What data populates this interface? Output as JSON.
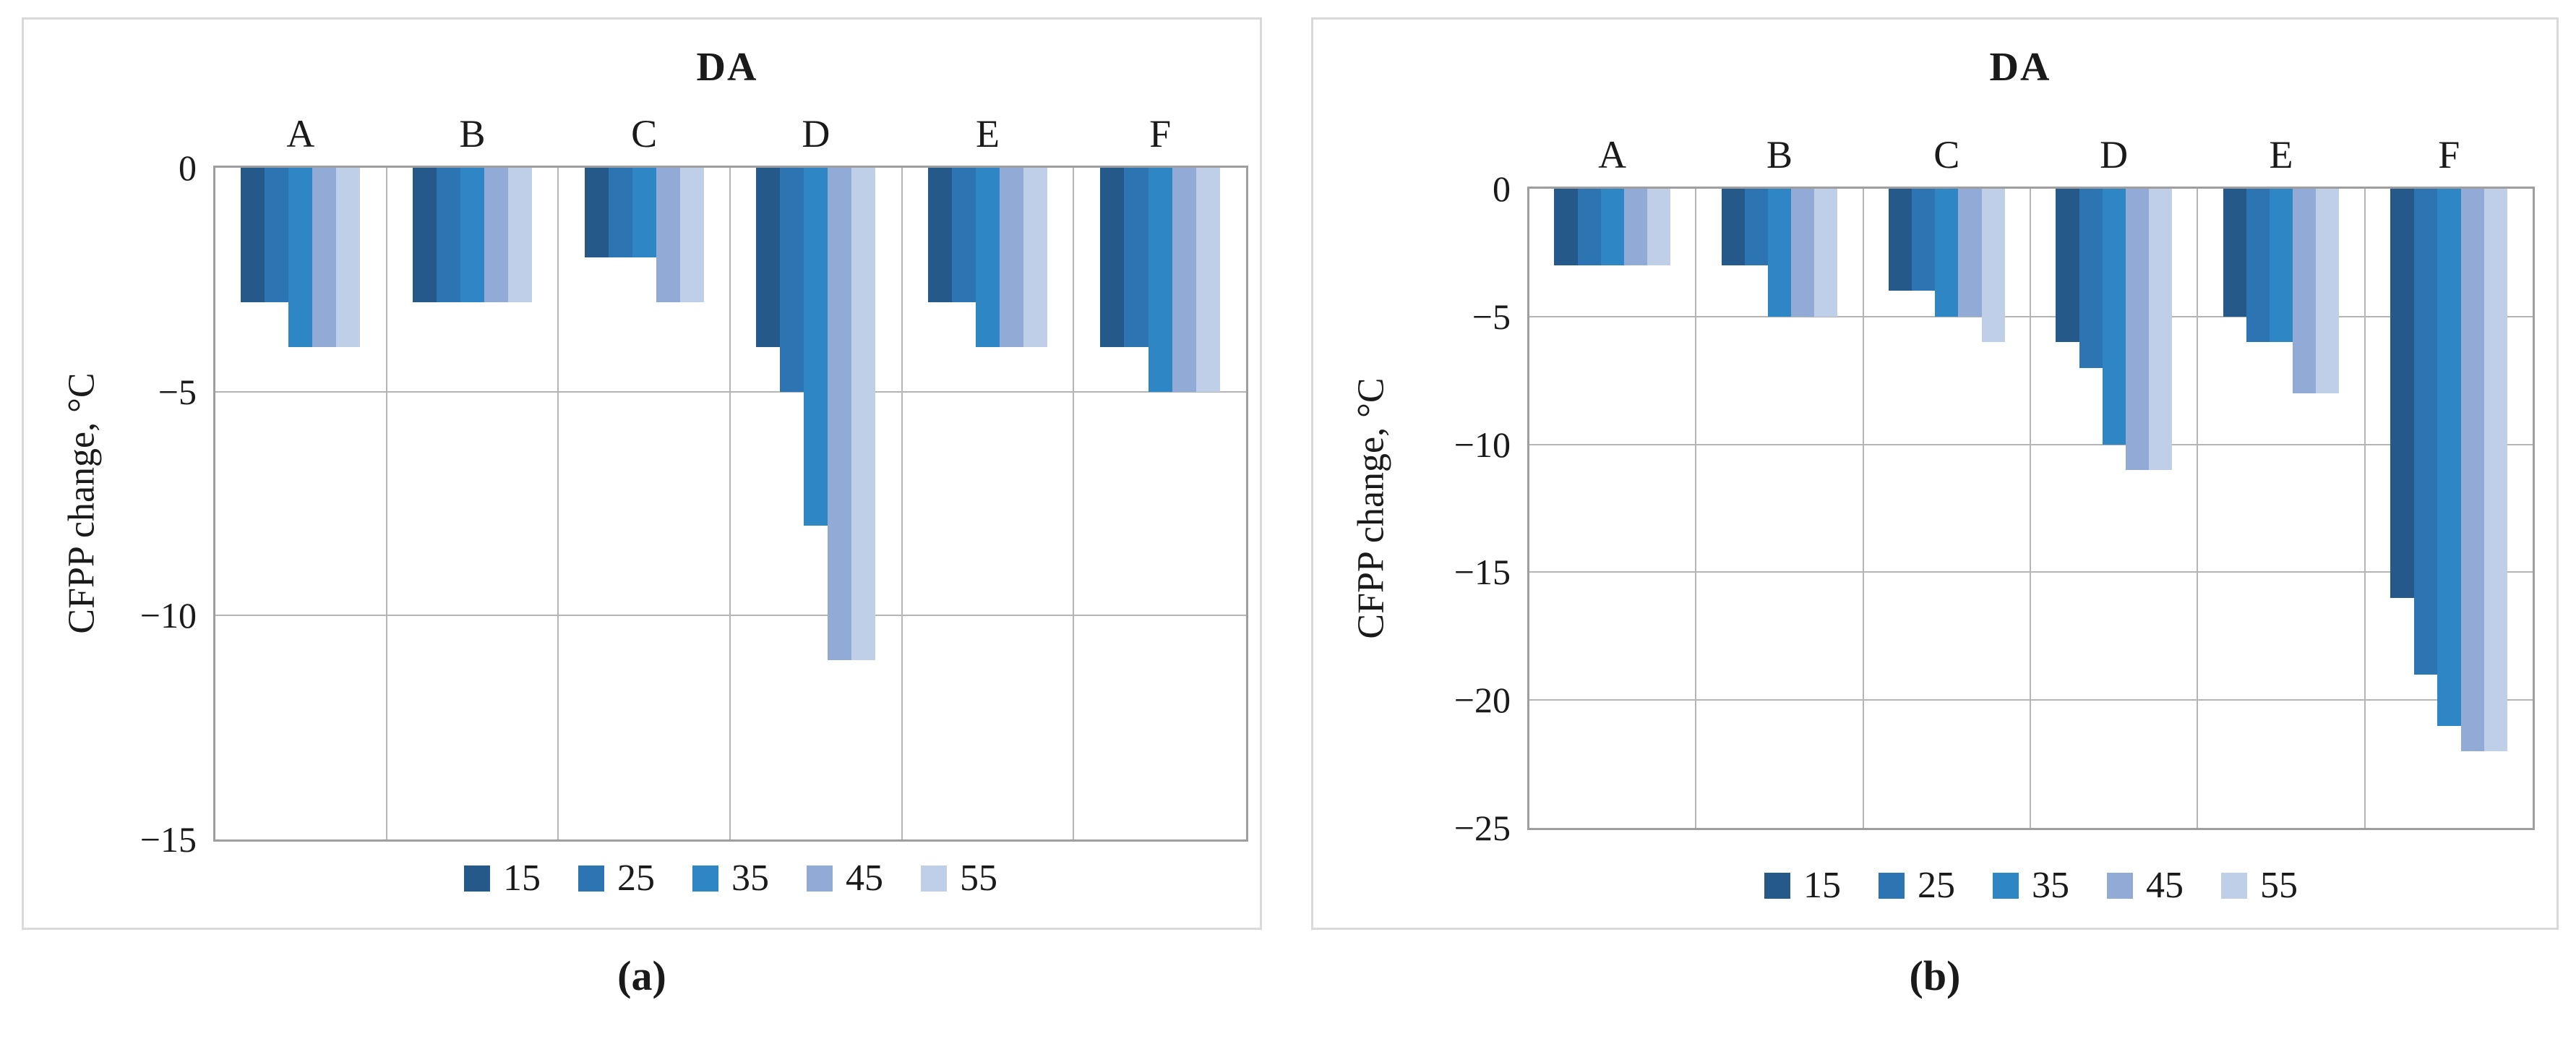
{
  "figure": {
    "series_colors": [
      "#24598a",
      "#2d74b2",
      "#2e86c4",
      "#92abd6",
      "#c0cfe8"
    ],
    "grid_color": "#b5b5b5",
    "panel_border_color": "#d9d9d9"
  },
  "chart_data": [
    {
      "type": "bar",
      "panel": "a",
      "caption": "(a)",
      "title": "DA",
      "xlabel": "",
      "ylabel": "CFPP change, °C",
      "categories": [
        "A",
        "B",
        "C",
        "D",
        "E",
        "F"
      ],
      "series": [
        {
          "name": "15",
          "values": [
            -3,
            -3,
            -2,
            -4,
            -3,
            -4
          ]
        },
        {
          "name": "25",
          "values": [
            -3,
            -3,
            -2,
            -5,
            -3,
            -4
          ]
        },
        {
          "name": "35",
          "values": [
            -4,
            -3,
            -2,
            -8,
            -4,
            -5
          ]
        },
        {
          "name": "45",
          "values": [
            -4,
            -3,
            -3,
            -11,
            -4,
            -5
          ]
        },
        {
          "name": "55",
          "values": [
            -4,
            -3,
            -3,
            -11,
            -4,
            -5
          ]
        }
      ],
      "ylim": [
        0,
        -15
      ],
      "yticks": [
        0,
        -5,
        -10,
        -15
      ],
      "grid": true,
      "legend_position": "bottom"
    },
    {
      "type": "bar",
      "panel": "b",
      "caption": "(b)",
      "title": "DA",
      "xlabel": "",
      "ylabel": "CFPP change, °C",
      "categories": [
        "A",
        "B",
        "C",
        "D",
        "E",
        "F"
      ],
      "series": [
        {
          "name": "15",
          "values": [
            -3,
            -3,
            -4,
            -6,
            -5,
            -16
          ]
        },
        {
          "name": "25",
          "values": [
            -3,
            -3,
            -4,
            -7,
            -6,
            -19
          ]
        },
        {
          "name": "35",
          "values": [
            -3,
            -5,
            -5,
            -10,
            -6,
            -21
          ]
        },
        {
          "name": "45",
          "values": [
            -3,
            -5,
            -5,
            -11,
            -8,
            -22
          ]
        },
        {
          "name": "55",
          "values": [
            -3,
            -5,
            -6,
            -11,
            -8,
            -22
          ]
        }
      ],
      "ylim": [
        0,
        -25
      ],
      "yticks": [
        0,
        -5,
        -10,
        -15,
        -20,
        -25
      ],
      "grid": true,
      "legend_position": "bottom"
    }
  ]
}
